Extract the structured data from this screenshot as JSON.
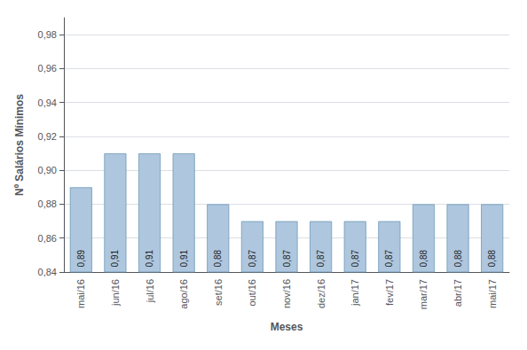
{
  "chart_data": {
    "type": "bar",
    "categories": [
      "mai/16",
      "jun/16",
      "jul/16",
      "ago/16",
      "set/16",
      "out/16",
      "nov/16",
      "dez/16",
      "jan/17",
      "fev/17",
      "mar/17",
      "abr/17",
      "mai/17"
    ],
    "values": [
      0.89,
      0.91,
      0.91,
      0.91,
      0.88,
      0.87,
      0.87,
      0.87,
      0.87,
      0.87,
      0.88,
      0.88,
      0.88
    ],
    "value_labels": [
      "0,89",
      "0,91",
      "0,91",
      "0,91",
      "0,88",
      "0,87",
      "0,87",
      "0,87",
      "0,87",
      "0,87",
      "0,88",
      "0,88",
      "0,88"
    ],
    "data_labels": true,
    "color": "#aec6de",
    "xlabel": "Meses",
    "ylabel": "Nº Salários Mínimos",
    "ylim": [
      0.84,
      0.99
    ],
    "yticks": [
      {
        "value": 0.84,
        "label": "0,84"
      },
      {
        "value": 0.86,
        "label": "0,86"
      },
      {
        "value": 0.88,
        "label": "0,88"
      },
      {
        "value": 0.9,
        "label": "0,90"
      },
      {
        "value": 0.92,
        "label": "0,92"
      },
      {
        "value": 0.94,
        "label": "0,94"
      },
      {
        "value": 0.96,
        "label": "0,96"
      },
      {
        "value": 0.98,
        "label": "0,98"
      }
    ],
    "grid": true
  }
}
